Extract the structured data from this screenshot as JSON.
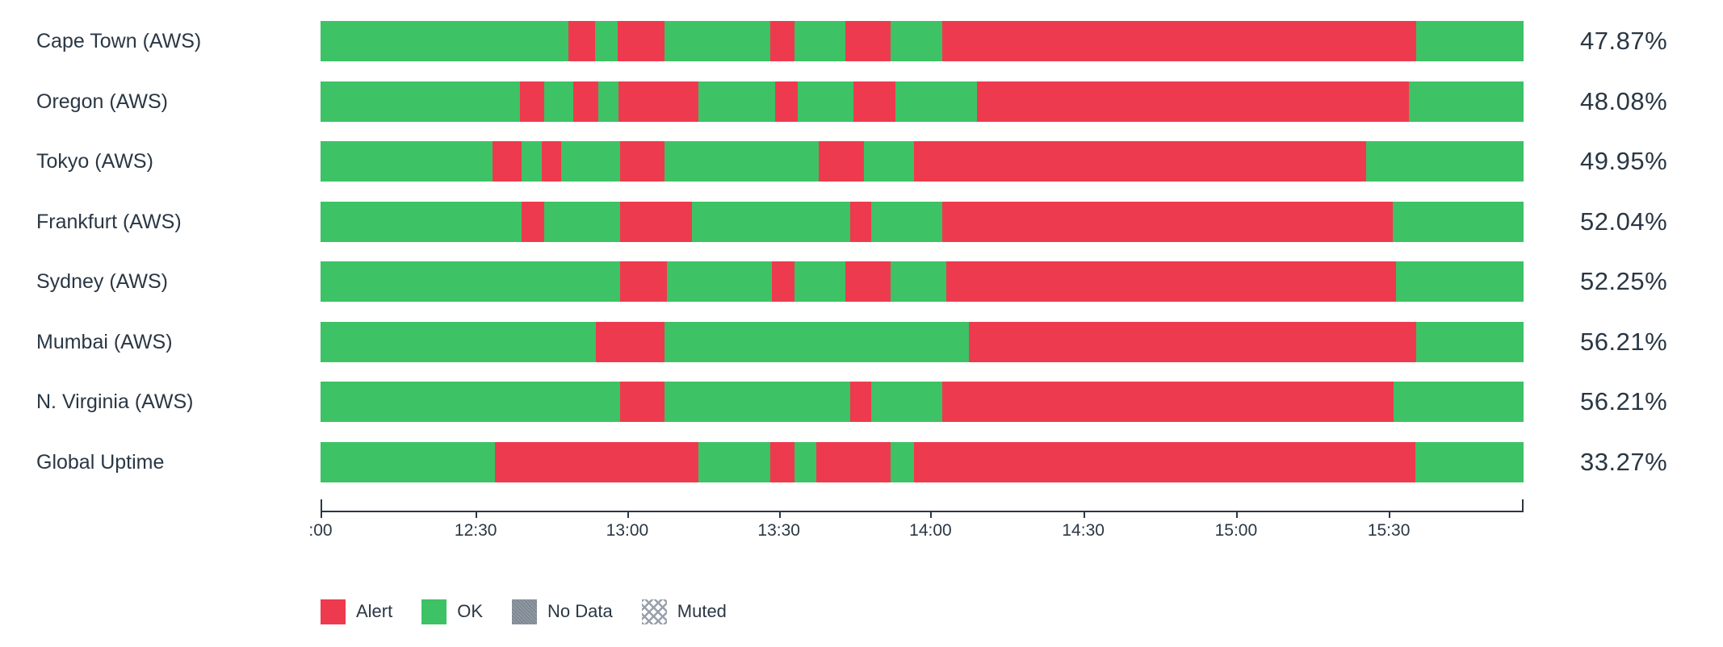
{
  "colors": {
    "alert": "#ee3a4e",
    "ok": "#3ec266",
    "no_data": "#7e8893",
    "text": "#2a3744"
  },
  "legend": [
    {
      "id": "alert",
      "label": "Alert"
    },
    {
      "id": "ok",
      "label": "OK"
    },
    {
      "id": "no_data",
      "label": "No Data"
    },
    {
      "id": "muted",
      "label": "Muted"
    }
  ],
  "chart_data": {
    "type": "heatmap",
    "subtype": "status-timeline-bars",
    "x_start": "12:00",
    "x_end": "16:00",
    "x_ticks": [
      {
        "label": ":00",
        "pos": 0
      },
      {
        "label": "12:30",
        "pos": 12.9
      },
      {
        "label": "13:00",
        "pos": 25.5
      },
      {
        "label": "13:30",
        "pos": 38.1
      },
      {
        "label": "14:00",
        "pos": 50.7
      },
      {
        "label": "14:30",
        "pos": 63.4
      },
      {
        "label": "15:00",
        "pos": 76.1
      },
      {
        "label": "15:30",
        "pos": 88.8
      }
    ],
    "legend_position": "bottom",
    "series": [
      {
        "name": "Cape Town (AWS)",
        "uptime": "47.87%",
        "segments": [
          [
            "ok",
            20.6
          ],
          [
            "alert",
            2.2
          ],
          [
            "ok",
            1.9
          ],
          [
            "alert",
            3.9
          ],
          [
            "ok",
            8.8
          ],
          [
            "alert",
            2.0
          ],
          [
            "ok",
            4.2
          ],
          [
            "alert",
            3.8
          ],
          [
            "ok",
            4.3
          ],
          [
            "alert",
            39.4
          ],
          [
            "ok",
            8.9
          ]
        ]
      },
      {
        "name": "Oregon (AWS)",
        "uptime": "48.08%",
        "segments": [
          [
            "ok",
            16.6
          ],
          [
            "alert",
            2.0
          ],
          [
            "ok",
            2.4
          ],
          [
            "alert",
            2.1
          ],
          [
            "ok",
            1.7
          ],
          [
            "alert",
            6.6
          ],
          [
            "ok",
            6.4
          ],
          [
            "alert",
            1.9
          ],
          [
            "ok",
            4.6
          ],
          [
            "alert",
            3.5
          ],
          [
            "ok",
            6.8
          ],
          [
            "alert",
            35.9
          ],
          [
            "ok",
            9.5
          ]
        ]
      },
      {
        "name": "Tokyo (AWS)",
        "uptime": "49.95%",
        "segments": [
          [
            "ok",
            14.3
          ],
          [
            "alert",
            2.4
          ],
          [
            "ok",
            1.7
          ],
          [
            "alert",
            1.6
          ],
          [
            "ok",
            4.9
          ],
          [
            "alert",
            3.7
          ],
          [
            "ok",
            12.8
          ],
          [
            "alert",
            3.8
          ],
          [
            "ok",
            4.1
          ],
          [
            "alert",
            37.6
          ],
          [
            "ok",
            13.1
          ]
        ]
      },
      {
        "name": "Frankfurt (AWS)",
        "uptime": "52.04%",
        "segments": [
          [
            "ok",
            16.7
          ],
          [
            "alert",
            1.9
          ],
          [
            "ok",
            6.3
          ],
          [
            "alert",
            6.0
          ],
          [
            "ok",
            13.1
          ],
          [
            "alert",
            1.8
          ],
          [
            "ok",
            5.9
          ],
          [
            "alert",
            37.4
          ],
          [
            "ok",
            10.9
          ]
        ]
      },
      {
        "name": "Sydney (AWS)",
        "uptime": "52.25%",
        "segments": [
          [
            "ok",
            24.9
          ],
          [
            "alert",
            3.9
          ],
          [
            "ok",
            8.7
          ],
          [
            "alert",
            1.9
          ],
          [
            "ok",
            4.2
          ],
          [
            "alert",
            3.8
          ],
          [
            "ok",
            4.6
          ],
          [
            "alert",
            37.4
          ],
          [
            "ok",
            10.6
          ]
        ]
      },
      {
        "name": "Mumbai (AWS)",
        "uptime": "56.21%",
        "segments": [
          [
            "ok",
            22.9
          ],
          [
            "alert",
            5.7
          ],
          [
            "ok",
            25.3
          ],
          [
            "alert",
            37.2
          ],
          [
            "ok",
            8.9
          ]
        ]
      },
      {
        "name": "N. Virginia (AWS)",
        "uptime": "56.21%",
        "segments": [
          [
            "ok",
            24.9
          ],
          [
            "alert",
            3.7
          ],
          [
            "ok",
            15.4
          ],
          [
            "alert",
            1.8
          ],
          [
            "ok",
            5.9
          ],
          [
            "alert",
            37.5
          ],
          [
            "ok",
            10.8
          ]
        ]
      },
      {
        "name": "Global Uptime",
        "uptime": "33.27%",
        "segments": [
          [
            "ok",
            14.5
          ],
          [
            "alert",
            16.9
          ],
          [
            "ok",
            6.0
          ],
          [
            "alert",
            2.0
          ],
          [
            "ok",
            1.8
          ],
          [
            "alert",
            6.2
          ],
          [
            "ok",
            1.9
          ],
          [
            "alert",
            41.7
          ],
          [
            "ok",
            9.0
          ]
        ]
      }
    ]
  }
}
